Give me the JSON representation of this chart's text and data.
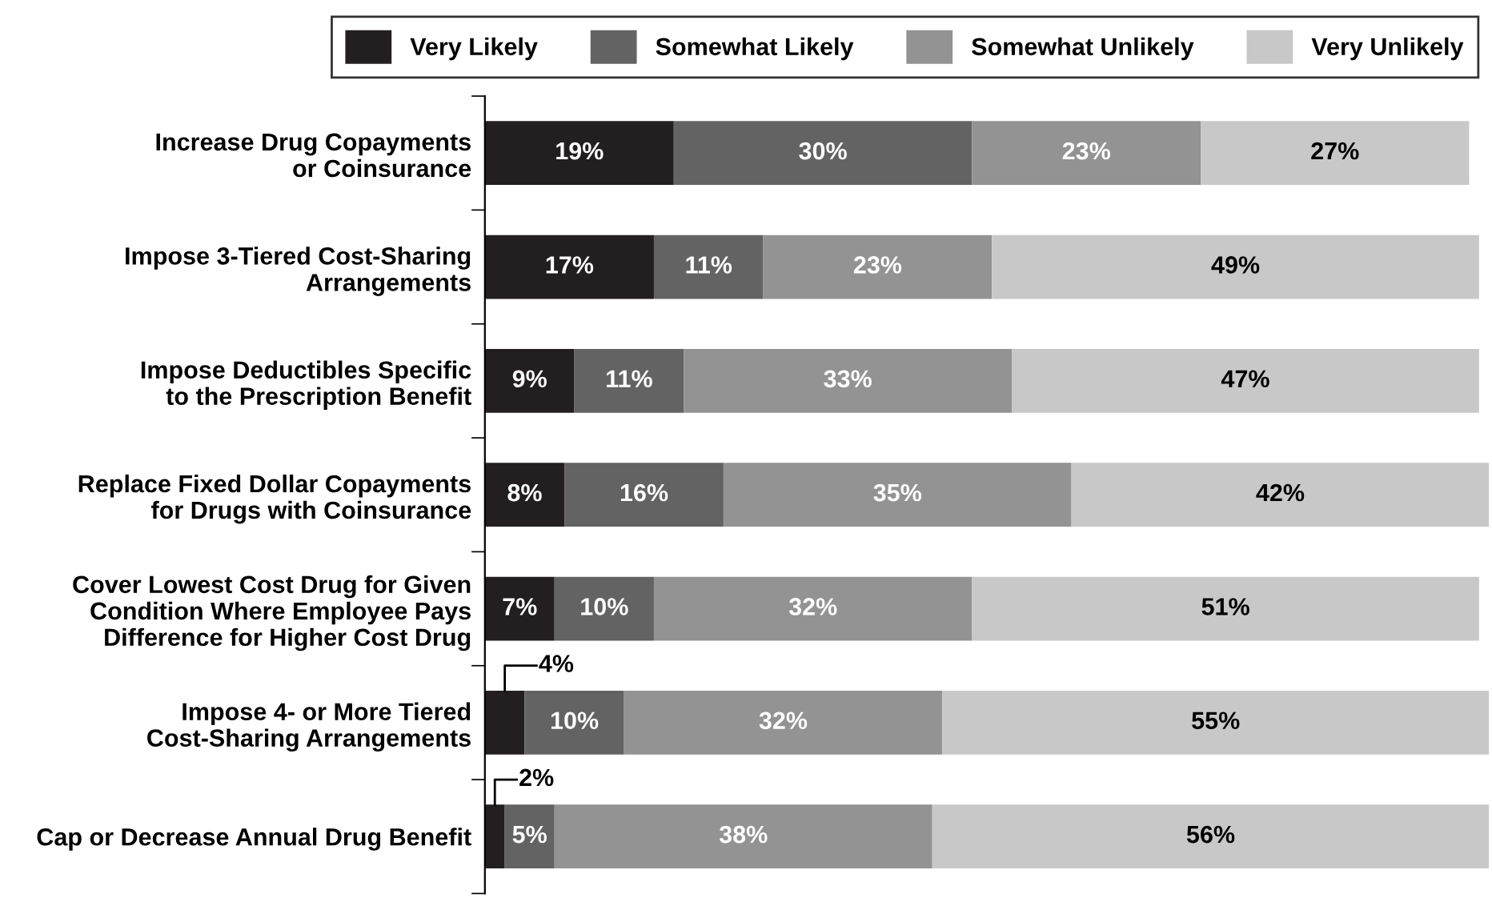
{
  "chart_data": {
    "type": "bar",
    "orientation": "horizontal",
    "stacked": true,
    "categories": [
      "Increase Drug Copayments\nor Coinsurance",
      "Impose 3-Tiered Cost-Sharing\nArrangements",
      "Impose Deductibles Specific\nto the Prescription Benefit",
      "Replace Fixed Dollar Copayments\nfor Drugs with Coinsurance",
      "Cover Lowest Cost Drug for Given\nCondition Where Employee Pays\nDifference for Higher Cost Drug",
      "Impose 4- or More Tiered\nCost-Sharing Arrangements",
      "Cap or Decrease Annual Drug Benefit"
    ],
    "series": [
      {
        "name": "Very Likely",
        "color": "#231f20",
        "values": [
          19,
          17,
          9,
          8,
          7,
          4,
          2
        ],
        "value_labels": [
          "19%",
          "17%",
          "9%",
          "8%",
          "7%",
          "4%",
          "2%"
        ]
      },
      {
        "name": "Somewhat Likely",
        "color": "#636363",
        "values": [
          30,
          11,
          11,
          16,
          10,
          10,
          5
        ],
        "value_labels": [
          "30%",
          "11%",
          "11%",
          "16%",
          "10%",
          "10%",
          "5%"
        ]
      },
      {
        "name": "Somewhat Unlikely",
        "color": "#939393",
        "values": [
          23,
          23,
          33,
          35,
          32,
          32,
          38
        ],
        "value_labels": [
          "23%",
          "23%",
          "33%",
          "35%",
          "32%",
          "32%",
          "38%"
        ]
      },
      {
        "name": "Very Unlikely",
        "color": "#c8c8c8",
        "values": [
          27,
          49,
          47,
          42,
          51,
          55,
          56
        ],
        "value_labels": [
          "27%",
          "49%",
          "47%",
          "42%",
          "51%",
          "55%",
          "56%"
        ]
      }
    ],
    "xlim": [
      0,
      101
    ],
    "tick_labels": "y",
    "legend": "top",
    "grid": false
  }
}
